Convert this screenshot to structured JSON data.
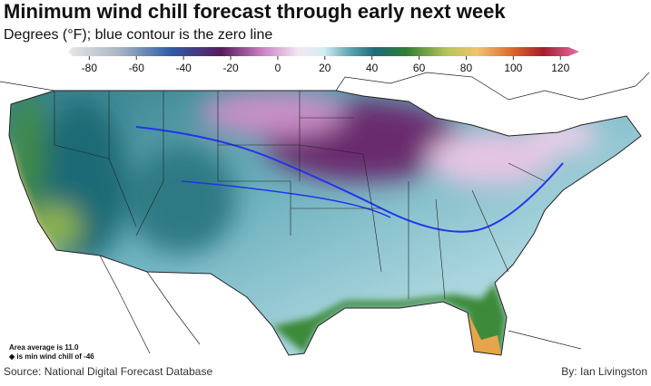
{
  "header": {
    "title": "Minimum wind chill forecast through early next week",
    "subtitle": "Degrees (°F); blue contour is the zero line"
  },
  "colorbar": {
    "lim": [
      -89,
      128
    ],
    "ticks": [
      -80,
      -60,
      -40,
      -20,
      0,
      20,
      40,
      60,
      80,
      100,
      120
    ]
  },
  "notes": [
    "Area average is 11.0",
    "◆ is min wind chill of -46"
  ],
  "footer": {
    "source": "Source: National Digital Forecast Database",
    "byline": "By: Ian Livingston"
  }
}
